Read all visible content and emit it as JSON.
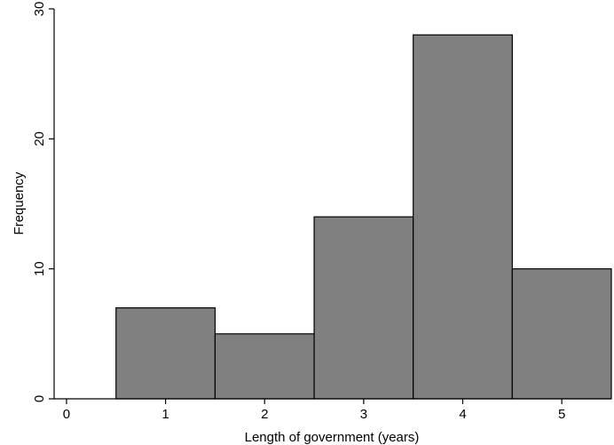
{
  "chart_data": {
    "type": "bar",
    "title": "",
    "xlabel": "Length of government (years)",
    "ylabel": "Frequency",
    "x_ticks": [
      0,
      1,
      2,
      3,
      4,
      5
    ],
    "y_ticks": [
      0,
      10,
      20,
      30
    ],
    "xlim": [
      -0.125,
      5.5
    ],
    "ylim": [
      0,
      30
    ],
    "categories": [
      1,
      2,
      3,
      4,
      5
    ],
    "values": [
      7,
      5,
      14,
      28,
      10
    ],
    "bar_width": 1,
    "grid": false,
    "bar_color": "#808080",
    "edge_color": "#000000"
  }
}
